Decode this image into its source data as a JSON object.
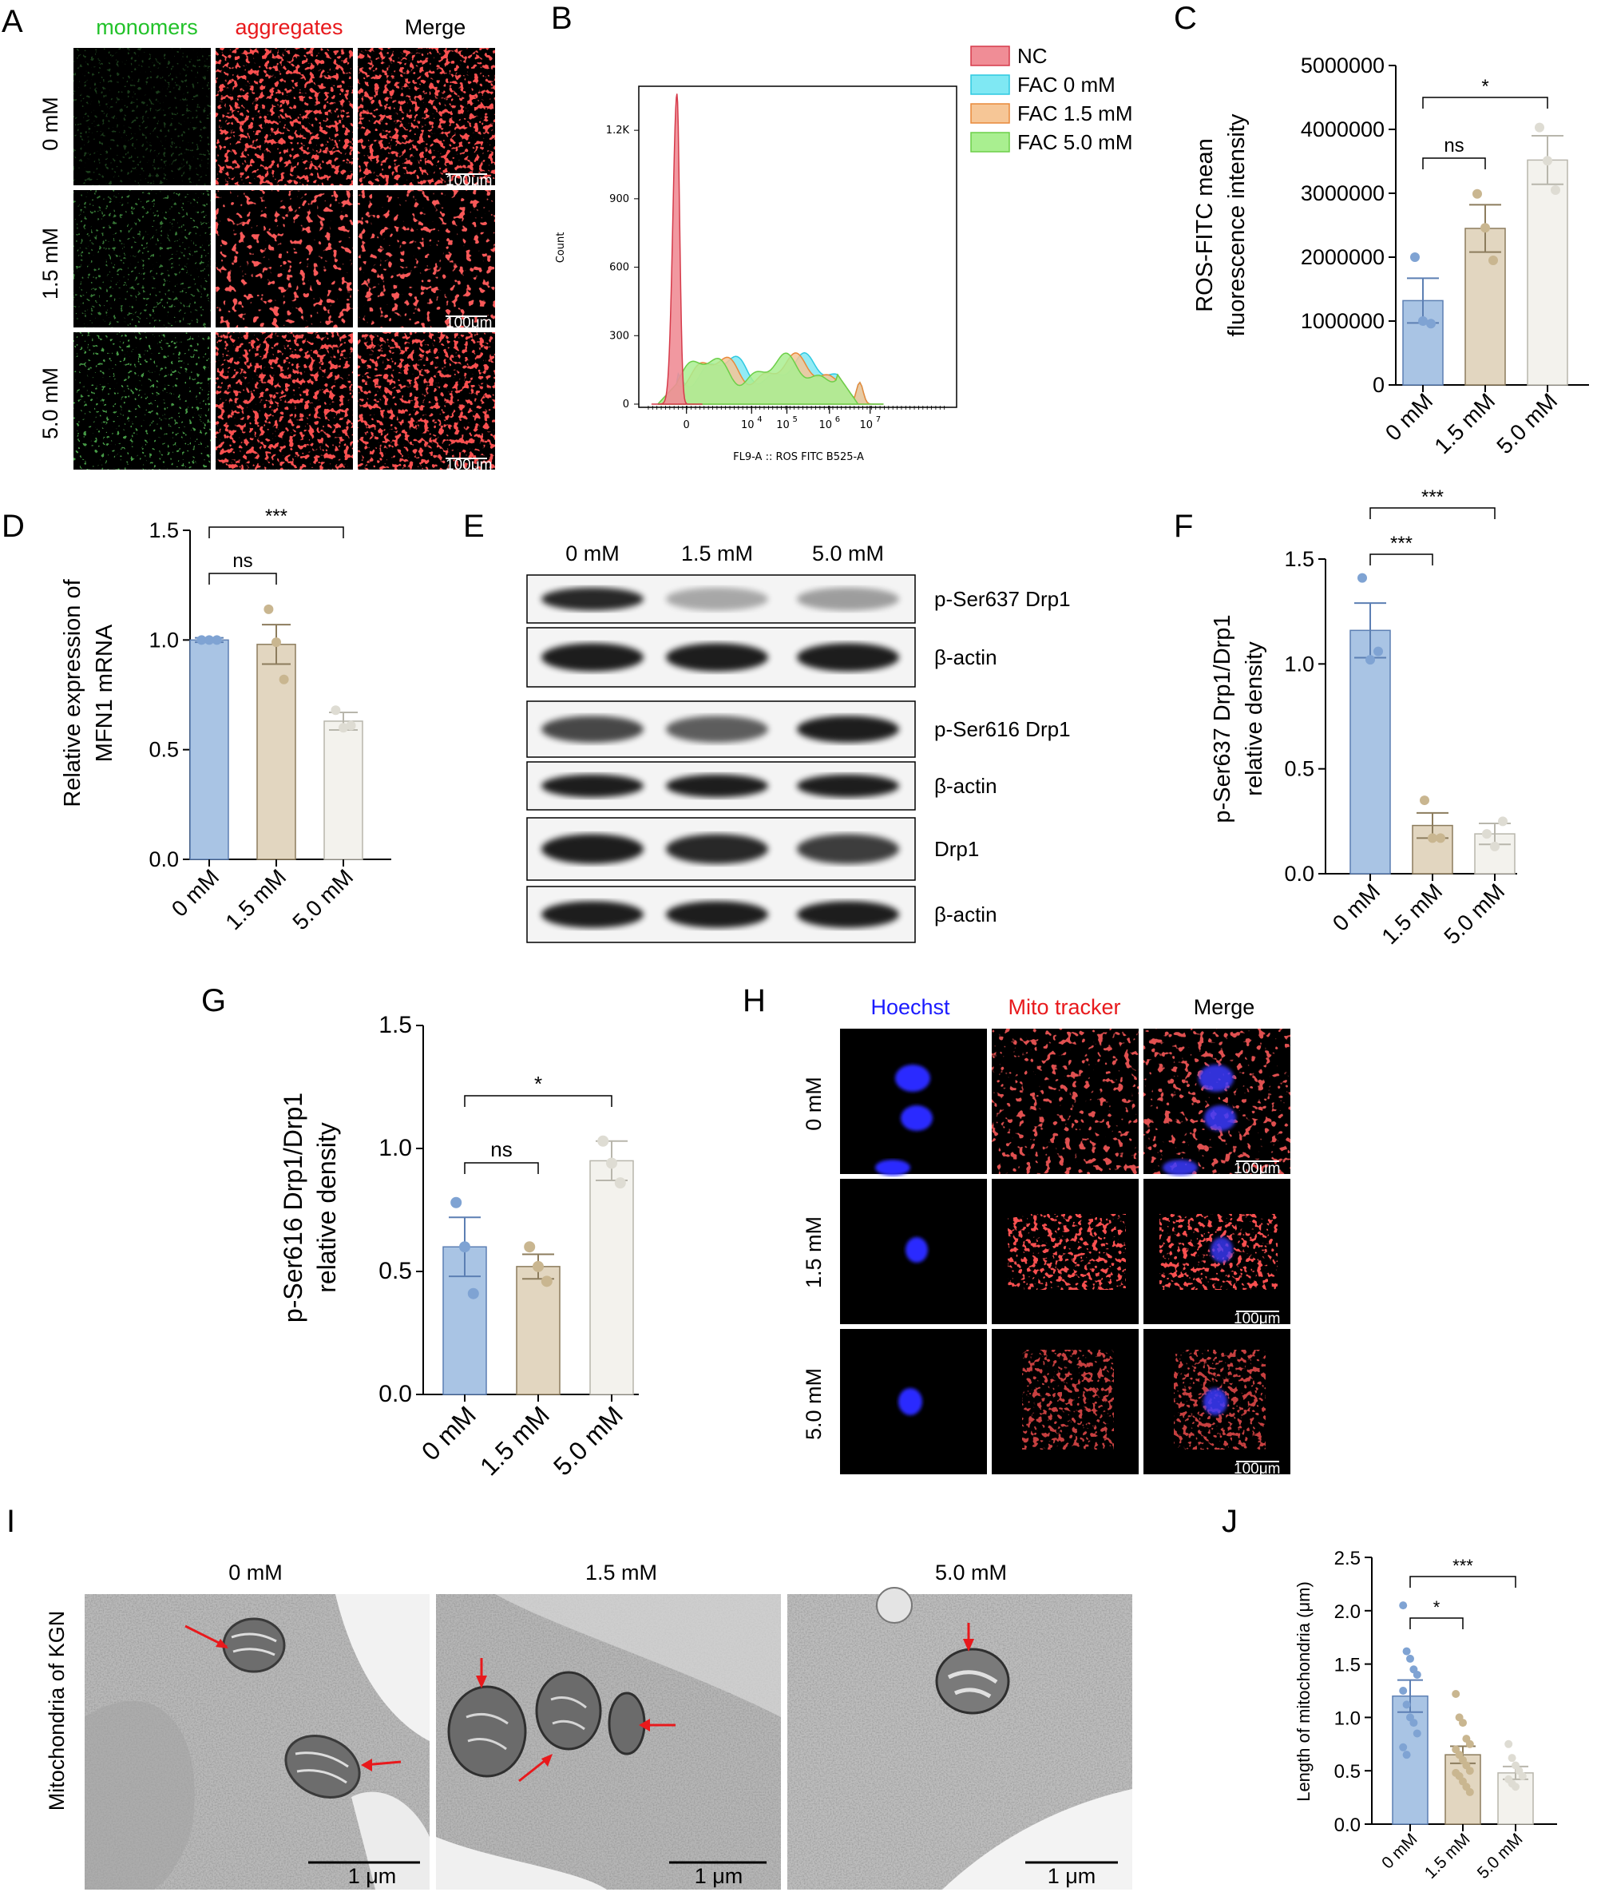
{
  "colors": {
    "group0": "#a9c4e4",
    "group0_edge": "#5c7fb3",
    "group0_dot": "#7fa3d3",
    "group1": "#e2d6c0",
    "group1_edge": "#8c7c5d",
    "group1_dot": "#c9b690",
    "group2": "#f3f2ed",
    "group2_edge": "#b8b6ac",
    "group2_dot": "#dedcd3",
    "green": "#22c22a",
    "red": "#e8191c",
    "blue": "#1b1bff"
  },
  "panels": {
    "A": {
      "label": "A",
      "columns": [
        "monomers",
        "aggregates",
        "Merge"
      ],
      "rows": [
        "0 mM",
        "1.5 mM",
        "5.0 mM"
      ],
      "scalebar": "100μm"
    },
    "B": {
      "label": "B",
      "xlabel": "FL9-A :: ROS FITC B525-A",
      "ylabel": "Count",
      "yticks": [
        "0",
        "300",
        "600",
        "900",
        "1.2K"
      ],
      "xtick_zero": "0",
      "xtick_base": "10",
      "xtick_exps": [
        "4",
        "5",
        "6",
        "7"
      ],
      "legend": [
        "NC",
        "FAC 0 mM",
        "FAC 1.5 mM",
        "FAC 5.0 mM"
      ],
      "legend_colors": [
        "#f08d96",
        "#7fe8f3",
        "#f6c696",
        "#a9ef90"
      ]
    },
    "C": {
      "label": "C"
    },
    "D": {
      "label": "D"
    },
    "E": {
      "label": "E",
      "lanes": [
        "0 mM",
        "1.5 mM",
        "5.0 mM"
      ],
      "blots": [
        "p-Ser637 Drp1",
        "β-actin",
        "p-Ser616 Drp1",
        "β-actin",
        "Drp1",
        "β-actin"
      ]
    },
    "F": {
      "label": "F"
    },
    "G": {
      "label": "G"
    },
    "H": {
      "label": "H",
      "columns": [
        "Hoechst",
        "Mito tracker",
        "Merge"
      ],
      "rows": [
        "0 mM",
        "1.5 mM",
        "5.0 mM"
      ],
      "scalebar": "100μm"
    },
    "I": {
      "label": "I",
      "side_label": "Mitochondria of KGN",
      "columns": [
        "0 mM",
        "1.5 mM",
        "5.0 mM"
      ],
      "scalebar": "1 μm"
    },
    "J": {
      "label": "J"
    }
  },
  "chart_data": [
    {
      "panel": "B",
      "type": "area",
      "title": "",
      "xlabel": "FL9-A :: ROS FITC B525-A",
      "ylabel": "Count",
      "x_scale": "biexponential",
      "ylim": [
        0,
        1400
      ],
      "series": [
        {
          "name": "NC",
          "x": [
            "-0.3",
            "0",
            "0.2",
            "1e3",
            "1e4",
            "1e5",
            "1e6"
          ],
          "values": [
            0,
            1360,
            0,
            0,
            0,
            0,
            0
          ]
        },
        {
          "name": "FAC 0 mM",
          "values_desc": "broad plateau ~150-200 with peak ~90 near 10^6"
        },
        {
          "name": "FAC 1.5 mM",
          "values_desc": "broad plateau ~150-230"
        },
        {
          "name": "FAC 5.0 mM",
          "values_desc": "broad plateau ~150-210"
        }
      ]
    },
    {
      "panel": "C",
      "type": "bar",
      "categories": [
        "0 mM",
        "1.5 mM",
        "5.0 mM"
      ],
      "values": [
        1320000,
        2450000,
        3520000
      ],
      "errors": [
        350000,
        370000,
        380000
      ],
      "points": [
        [
          2000000,
          1000000,
          960000
        ],
        [
          2990000,
          2460000,
          1950000
        ],
        [
          4030000,
          3510000,
          3050000
        ]
      ],
      "ylabel": "ROS-FITC mean\nfluorescence intensity",
      "ylim": [
        0,
        5000000
      ],
      "yticks": [
        "0",
        "1000000",
        "2000000",
        "3000000",
        "4000000",
        "5000000"
      ],
      "comparisons": [
        {
          "from": 0,
          "to": 1,
          "label": "ns"
        },
        {
          "from": 0,
          "to": 2,
          "label": "*"
        }
      ]
    },
    {
      "panel": "D",
      "type": "bar",
      "categories": [
        "0 mM",
        "1.5 mM",
        "5.0 mM"
      ],
      "values": [
        1.0,
        0.98,
        0.63
      ],
      "errors": [
        0.01,
        0.09,
        0.04
      ],
      "points": [
        [
          1.0,
          1.0,
          1.0
        ],
        [
          1.14,
          0.99,
          0.82
        ],
        [
          0.68,
          0.6,
          0.61
        ]
      ],
      "ylabel": "Relative expression of\nMFN1 mRNA",
      "ylim": [
        0,
        1.5
      ],
      "yticks": [
        "0.0",
        "0.5",
        "1.0",
        "1.5"
      ],
      "comparisons": [
        {
          "from": 0,
          "to": 1,
          "label": "ns"
        },
        {
          "from": 0,
          "to": 2,
          "label": "***"
        }
      ]
    },
    {
      "panel": "F",
      "type": "bar",
      "categories": [
        "0 mM",
        "1.5 mM",
        "5.0 mM"
      ],
      "values": [
        1.16,
        0.23,
        0.19
      ],
      "errors": [
        0.13,
        0.06,
        0.05
      ],
      "points": [
        [
          1.41,
          1.02,
          1.06
        ],
        [
          0.35,
          0.17,
          0.17
        ],
        [
          0.19,
          0.13,
          0.25
        ]
      ],
      "ylabel": "p-Ser637 Drp1/Drp1\nrelative density",
      "ylim": [
        0,
        1.5
      ],
      "yticks": [
        "0.0",
        "0.5",
        "1.0",
        "1.5"
      ],
      "comparisons": [
        {
          "from": 0,
          "to": 1,
          "label": "***"
        },
        {
          "from": 0,
          "to": 2,
          "label": "***"
        }
      ]
    },
    {
      "panel": "G",
      "type": "bar",
      "categories": [
        "0 mM",
        "1.5 mM",
        "5.0 mM"
      ],
      "values": [
        0.6,
        0.52,
        0.95
      ],
      "errors": [
        0.12,
        0.05,
        0.08
      ],
      "points": [
        [
          0.78,
          0.6,
          0.41
        ],
        [
          0.6,
          0.52,
          0.46
        ],
        [
          1.03,
          0.94,
          0.86
        ]
      ],
      "ylabel": "p-Ser616 Drp1/Drp1\nrelative density",
      "ylim": [
        0,
        1.5
      ],
      "yticks": [
        "0.0",
        "0.5",
        "1.0",
        "1.5"
      ],
      "comparisons": [
        {
          "from": 0,
          "to": 1,
          "label": "ns"
        },
        {
          "from": 0,
          "to": 2,
          "label": "*"
        }
      ]
    },
    {
      "panel": "J",
      "type": "bar",
      "categories": [
        "0 mM",
        "1.5 mM",
        "5.0 mM"
      ],
      "values": [
        1.2,
        0.65,
        0.48
      ],
      "errors": [
        0.15,
        0.08,
        0.06
      ],
      "points": [
        [
          2.05,
          1.62,
          1.55,
          1.45,
          1.4,
          1.25,
          1.12,
          1.0,
          0.95,
          0.85,
          0.72,
          0.65
        ],
        [
          1.22,
          1.0,
          0.95,
          0.8,
          0.75,
          0.7,
          0.65,
          0.6,
          0.55,
          0.5,
          0.48,
          0.45,
          0.4,
          0.35,
          0.3
        ],
        [
          0.75,
          0.62,
          0.55,
          0.5,
          0.45,
          0.42,
          0.38,
          0.35
        ]
      ],
      "ylabel": "Length of mitochondria (μm)",
      "ylim": [
        0,
        2.5
      ],
      "yticks": [
        "0.0",
        "0.5",
        "1.0",
        "1.5",
        "2.0",
        "2.5"
      ],
      "comparisons": [
        {
          "from": 0,
          "to": 1,
          "label": "*"
        },
        {
          "from": 0,
          "to": 2,
          "label": "***"
        }
      ]
    }
  ]
}
